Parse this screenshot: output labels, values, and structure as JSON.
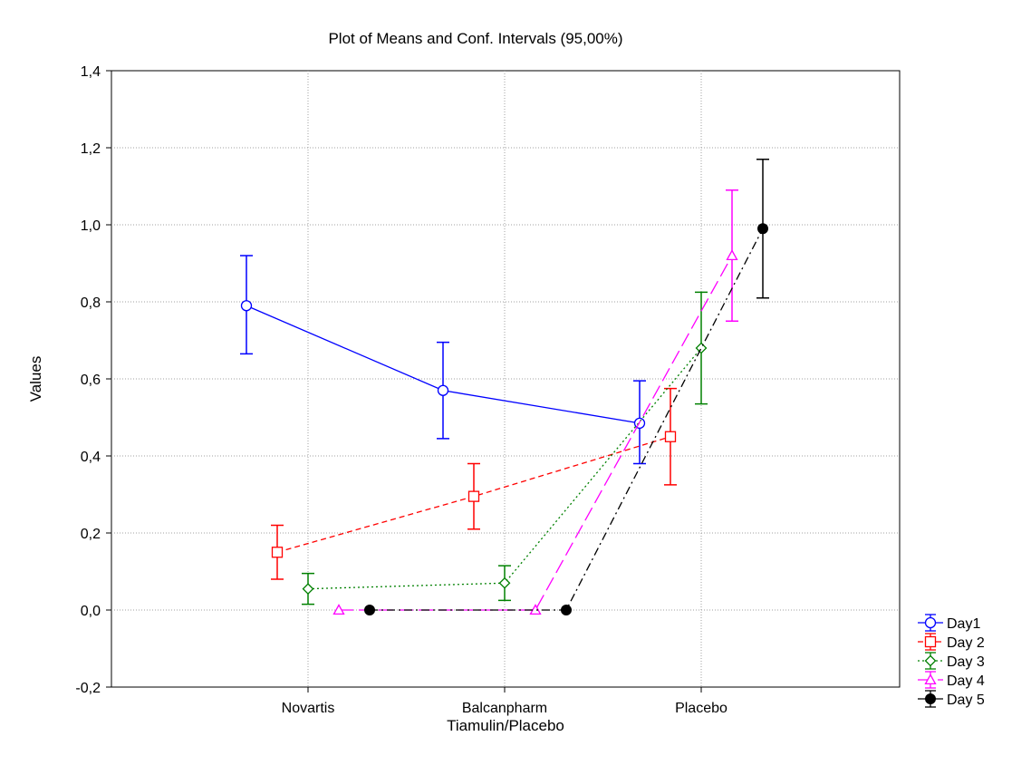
{
  "chart_data": {
    "type": "line",
    "title": "Plot of Means and Conf. Intervals (95,00%)",
    "xlabel": "Tiamulin/Placebo",
    "ylabel": "Values",
    "categories": [
      "Novartis",
      "Balcanpharm",
      "Placebo"
    ],
    "ylim": [
      -0.2,
      1.4
    ],
    "yticks": [
      "-0,2",
      "0,0",
      "0,2",
      "0,4",
      "0,6",
      "0,8",
      "1,0",
      "1,2",
      "1,4"
    ],
    "grid": true,
    "legend_position": "bottom-right outside",
    "series": [
      {
        "name": "Day1",
        "color": "#0000ff",
        "dash": "solid",
        "marker": "circle-open",
        "values": [
          0.79,
          0.57,
          0.485
        ],
        "ci_low": [
          0.665,
          0.445,
          0.38
        ],
        "ci_high": [
          0.92,
          0.695,
          0.595
        ]
      },
      {
        "name": "Day 2",
        "color": "#ff0000",
        "dash": "dashed",
        "marker": "square-open",
        "values": [
          0.15,
          0.295,
          0.45
        ],
        "ci_low": [
          0.08,
          0.21,
          0.325
        ],
        "ci_high": [
          0.22,
          0.38,
          0.575
        ]
      },
      {
        "name": "Day 3",
        "color": "#008000",
        "dash": "dotted",
        "marker": "diamond-open",
        "values": [
          0.055,
          0.07,
          0.68
        ],
        "ci_low": [
          0.015,
          0.025,
          0.535
        ],
        "ci_high": [
          0.095,
          0.115,
          0.825
        ]
      },
      {
        "name": "Day 4",
        "color": "#ff00ff",
        "dash": "longdash",
        "marker": "triangle-open",
        "values": [
          0.0,
          0.0,
          0.92
        ],
        "ci_low": [
          0.0,
          0.0,
          0.75
        ],
        "ci_high": [
          0.0,
          0.0,
          1.09
        ]
      },
      {
        "name": "Day 5",
        "color": "#000000",
        "dash": "dashdot",
        "marker": "circle-filled",
        "values": [
          0.0,
          0.0,
          0.99
        ],
        "ci_low": [
          0.0,
          0.0,
          0.81
        ],
        "ci_high": [
          0.0,
          0.0,
          1.17
        ]
      }
    ]
  }
}
